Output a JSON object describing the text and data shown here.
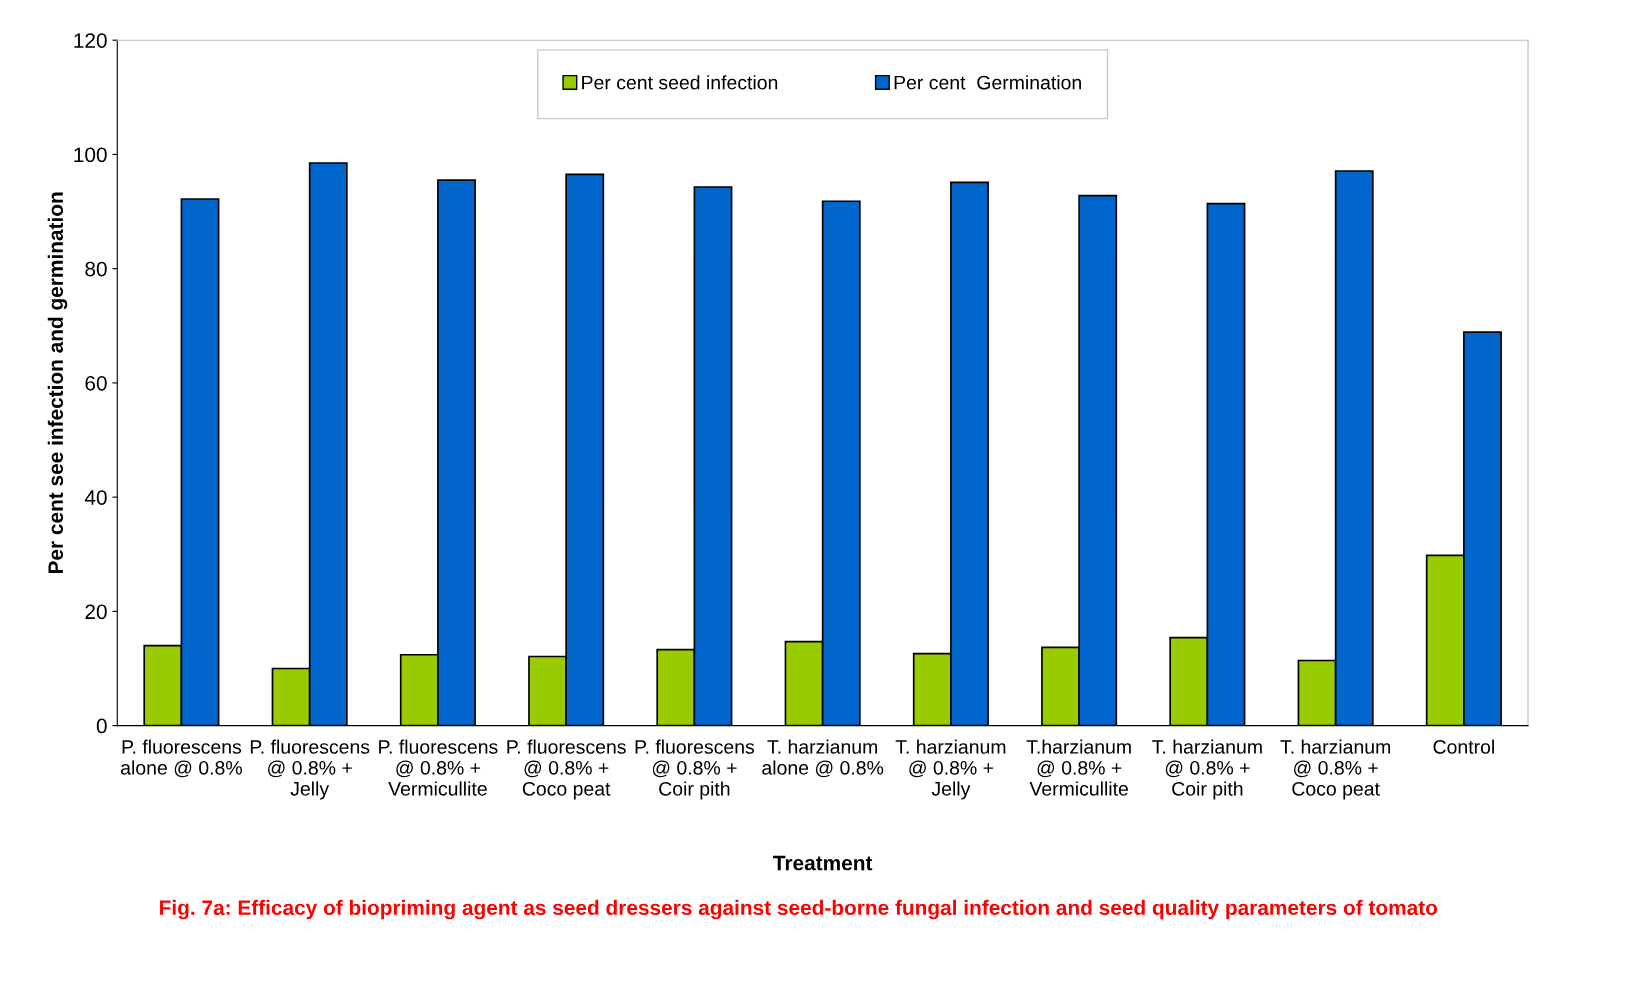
{
  "chart_data": {
    "type": "bar",
    "xlabel": "Treatment",
    "ylabel": "Per cent see infection and germination",
    "categories": [
      "P. fluorescens\nalone @ 0.8%",
      "P. fluorescens\n@ 0.8% +\nJelly",
      "P. fluorescens\n@ 0.8% +\nVermicullite",
      "P. fluorescens\n@ 0.8% +\nCoco peat",
      "P. fluorescens\n@ 0.8% +\nCoir pith",
      "T. harzianum\nalone @ 0.8%",
      "T. harzianum\n@ 0.8% +\nJelly",
      "T.harzianum\n@ 0.8% +\nVermicullite",
      "T. harzianum\n@ 0.8% +\nCoir pith",
      "T. harzianum\n@ 0.8% +\nCoco peat",
      "Control"
    ],
    "series": [
      {
        "name": "Per cent seed infection",
        "color": "#99cc00",
        "values": [
          14.0,
          10.0,
          12.4,
          12.1,
          13.3,
          14.7,
          12.6,
          13.7,
          15.4,
          11.4,
          29.8
        ]
      },
      {
        "name": "Per cent  Germination",
        "color": "#0066cc",
        "values": [
          92.2,
          98.5,
          95.5,
          96.5,
          94.3,
          91.8,
          95.1,
          92.8,
          91.4,
          97.1,
          68.9
        ]
      }
    ],
    "ylim": [
      0,
      120
    ],
    "yticks": [
      0,
      20,
      40,
      60,
      80,
      100,
      120
    ],
    "grid": false,
    "legend": "top",
    "annotations": [
      "Fig. 7a: Efficacy of biopriming agent as seed dressers against seed-borne fungal infection and seed quality parameters of tomato"
    ]
  }
}
